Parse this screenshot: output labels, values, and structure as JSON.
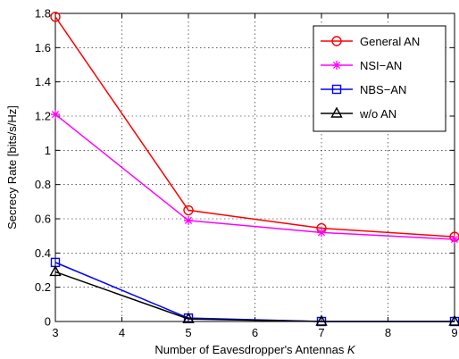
{
  "chart_data": {
    "type": "line",
    "xlabel": "Number of Eavesdropper's Antennas ",
    "xlabel_italic": "K",
    "ylabel": "Secrecy Rate [bits/s/Hz]",
    "xlim": [
      3,
      9
    ],
    "ylim": [
      0,
      1.8
    ],
    "xticks": [
      3,
      4,
      5,
      6,
      7,
      8,
      9
    ],
    "yticks": [
      0,
      0.2,
      0.4,
      0.6,
      0.8,
      1,
      1.2,
      1.4,
      1.6,
      1.8
    ],
    "grid": true,
    "legend_position": "top-right",
    "x": [
      3,
      5,
      7,
      9
    ],
    "series": [
      {
        "name": "General AN",
        "values": [
          1.78,
          0.65,
          0.545,
          0.495
        ],
        "color": "#ff0000",
        "marker": "circle"
      },
      {
        "name": "NSI−AN",
        "values": [
          1.21,
          0.59,
          0.52,
          0.48
        ],
        "color": "#ff00ff",
        "marker": "star"
      },
      {
        "name": "NBS−AN",
        "values": [
          0.345,
          0.02,
          0.0,
          0.0
        ],
        "color": "#0000ff",
        "marker": "square"
      },
      {
        "name": "w/o AN",
        "values": [
          0.29,
          0.015,
          0.0,
          0.0
        ],
        "color": "#000000",
        "marker": "triangle"
      }
    ]
  }
}
